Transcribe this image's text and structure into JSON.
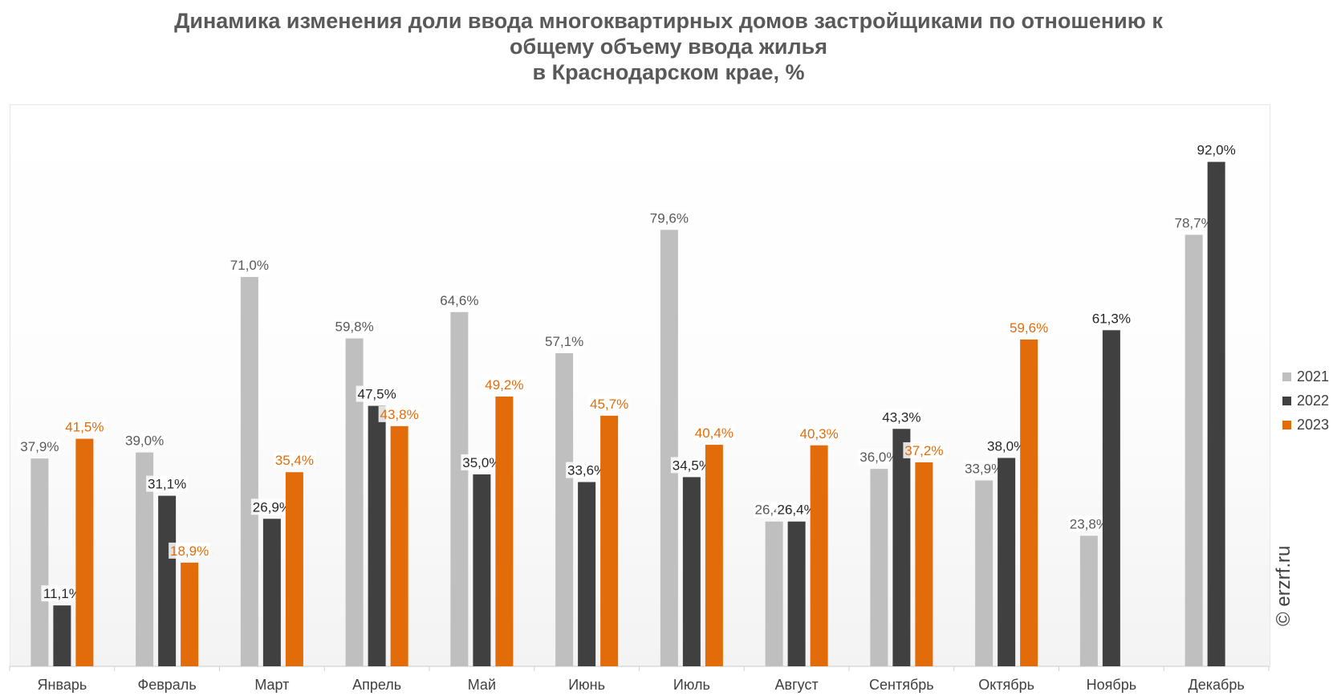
{
  "title_lines": [
    "Динамика изменения доли ввода многоквартирных домов застройщиками по отношению к",
    "общему объему ввода жилья",
    "в Краснодарском крае, %"
  ],
  "copyright": "© erzrf.ru",
  "colors": {
    "2021": "#bfbfbf",
    "2022": "#404040",
    "2023": "#e36c0a"
  },
  "chart_data": {
    "type": "bar",
    "title": "Динамика изменения доли ввода многоквартирных домов застройщиками по отношению к общему объему ввода жилья в Краснодарском крае, %",
    "categories": [
      "Январь",
      "Февраль",
      "Март",
      "Апрель",
      "Май",
      "Июнь",
      "Июль",
      "Август",
      "Сентябрь",
      "Октябрь",
      "Ноябрь",
      "Декабрь"
    ],
    "series": [
      {
        "name": "2021",
        "values": [
          37.9,
          39.0,
          71.0,
          59.8,
          64.6,
          57.1,
          79.6,
          26.4,
          36.0,
          33.9,
          23.8,
          78.7
        ],
        "labels": [
          "37,9%",
          "39,0%",
          "71,0%",
          "59,8%",
          "64,6%",
          "57,1%",
          "79,6%",
          "26,4%",
          "36,0%",
          "33,9%",
          "23,8%",
          "78,7%"
        ]
      },
      {
        "name": "2022",
        "values": [
          11.1,
          31.1,
          26.9,
          47.5,
          35.0,
          33.6,
          34.5,
          26.4,
          43.3,
          38.0,
          61.3,
          92.0
        ],
        "labels": [
          "11,1%",
          "31,1%",
          "26,9%",
          "47,5%",
          "35,0%",
          "33,6%",
          "34,5%",
          "26,4%",
          "43,3%",
          "38,0%",
          "61,3%",
          "92,0%"
        ]
      },
      {
        "name": "2023",
        "values": [
          41.5,
          18.9,
          35.4,
          43.8,
          49.2,
          45.7,
          40.4,
          40.3,
          37.2,
          59.6,
          null,
          null
        ],
        "labels": [
          "41,5%",
          "18,9%",
          "35,4%",
          "43,8%",
          "49,2%",
          "45,7%",
          "40,4%",
          "40,3%",
          "37,2%",
          "59,6%",
          "",
          ""
        ]
      }
    ],
    "ylim": [
      0,
      100
    ],
    "grid": false,
    "legend": "right"
  }
}
